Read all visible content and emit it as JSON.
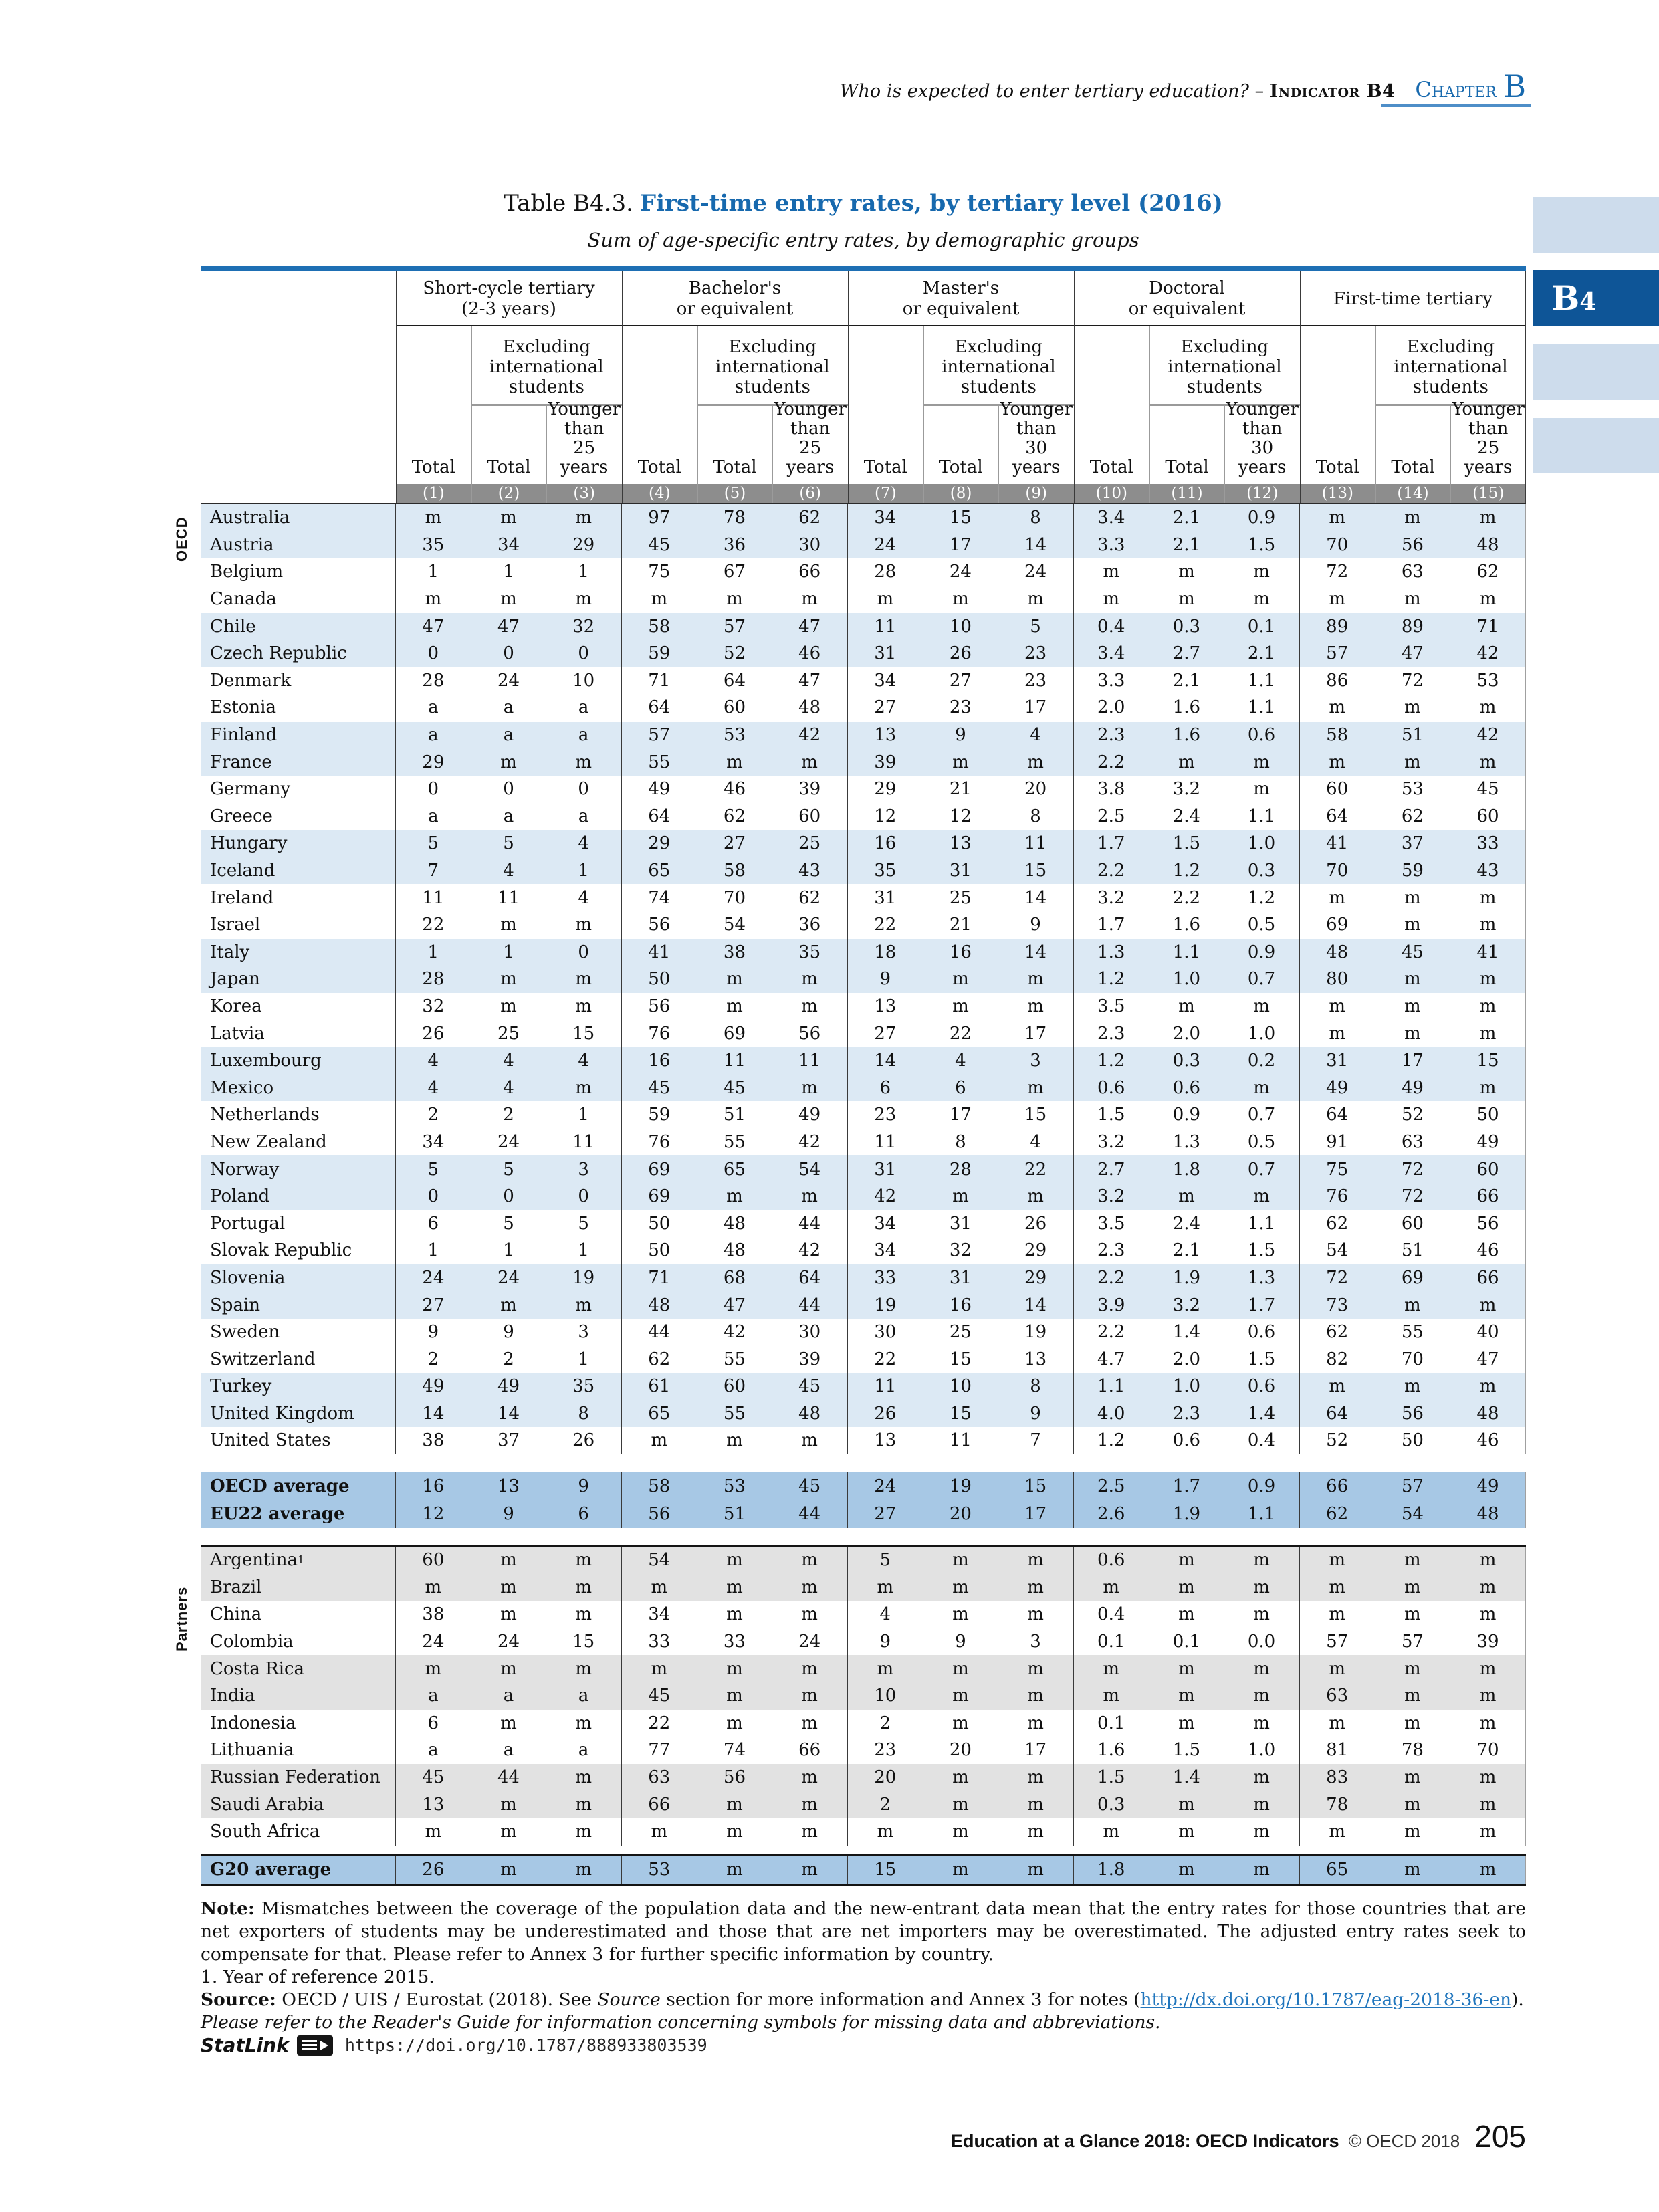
{
  "colors": {
    "accent": "#1769ae",
    "bar-blue": "#1e6fb4",
    "tab-blue": "#0e5597",
    "side-blue": "#cddcec",
    "shade-blue": "#dce9f4",
    "avg-blue": "#a7c8e5",
    "partner-gray": "#e2e2e2",
    "colnum-gray": "#8d8d8d",
    "grid-gray": "#a0a0a0",
    "link-blue": "#2176bd",
    "chapter-rule": "#4e8ec8"
  },
  "running_head": {
    "question": "Who is expected to enter tertiary education?",
    "dash": " – ",
    "indicator": "Indicator B4",
    "chapter_word": "Chapter",
    "chapter_letter": "B"
  },
  "side_tab": {
    "letter": "B",
    "digit": "4"
  },
  "caption": {
    "prefix": "Table B4.3.",
    "title": "First-time entry rates, by tertiary level (2016)",
    "subtitle": "Sum of age-specific entry rates, by demographic groups"
  },
  "table": {
    "groups": [
      {
        "title": "Short-cycle tertiary\n(2-3 years)",
        "age": "25"
      },
      {
        "title": "Bachelor's\nor equivalent",
        "age": "25"
      },
      {
        "title": "Master's\nor equivalent",
        "age": "30"
      },
      {
        "title": "Doctoral\nor equivalent",
        "age": "30"
      },
      {
        "title": "First-time tertiary",
        "age": "25"
      }
    ],
    "subheaders": {
      "total": "Total",
      "excluding": "Excluding\ninternational\nstudents",
      "younger25": "Younger\nthan\n25 years",
      "younger30": "Younger\nthan\n30 years"
    },
    "col_numbers": [
      "(1)",
      "(2)",
      "(3)",
      "(4)",
      "(5)",
      "(6)",
      "(7)",
      "(8)",
      "(9)",
      "(10)",
      "(11)",
      "(12)",
      "(13)",
      "(14)",
      "(15)"
    ],
    "sections": {
      "oecd_label": "OECD",
      "partners_label": "Partners"
    },
    "oecd_rows": [
      {
        "name": "Australia",
        "values": [
          "m",
          "m",
          "m",
          "97",
          "78",
          "62",
          "34",
          "15",
          "8",
          "3.4",
          "2.1",
          "0.9",
          "m",
          "m",
          "m"
        ]
      },
      {
        "name": "Austria",
        "values": [
          "35",
          "34",
          "29",
          "45",
          "36",
          "30",
          "24",
          "17",
          "14",
          "3.3",
          "2.1",
          "1.5",
          "70",
          "56",
          "48"
        ]
      },
      {
        "name": "Belgium",
        "values": [
          "1",
          "1",
          "1",
          "75",
          "67",
          "66",
          "28",
          "24",
          "24",
          "m",
          "m",
          "m",
          "72",
          "63",
          "62"
        ]
      },
      {
        "name": "Canada",
        "values": [
          "m",
          "m",
          "m",
          "m",
          "m",
          "m",
          "m",
          "m",
          "m",
          "m",
          "m",
          "m",
          "m",
          "m",
          "m"
        ]
      },
      {
        "name": "Chile",
        "values": [
          "47",
          "47",
          "32",
          "58",
          "57",
          "47",
          "11",
          "10",
          "5",
          "0.4",
          "0.3",
          "0.1",
          "89",
          "89",
          "71"
        ]
      },
      {
        "name": "Czech Republic",
        "values": [
          "0",
          "0",
          "0",
          "59",
          "52",
          "46",
          "31",
          "26",
          "23",
          "3.4",
          "2.7",
          "2.1",
          "57",
          "47",
          "42"
        ]
      },
      {
        "name": "Denmark",
        "values": [
          "28",
          "24",
          "10",
          "71",
          "64",
          "47",
          "34",
          "27",
          "23",
          "3.3",
          "2.1",
          "1.1",
          "86",
          "72",
          "53"
        ]
      },
      {
        "name": "Estonia",
        "values": [
          "a",
          "a",
          "a",
          "64",
          "60",
          "48",
          "27",
          "23",
          "17",
          "2.0",
          "1.6",
          "1.1",
          "m",
          "m",
          "m"
        ]
      },
      {
        "name": "Finland",
        "values": [
          "a",
          "a",
          "a",
          "57",
          "53",
          "42",
          "13",
          "9",
          "4",
          "2.3",
          "1.6",
          "0.6",
          "58",
          "51",
          "42"
        ]
      },
      {
        "name": "France",
        "values": [
          "29",
          "m",
          "m",
          "55",
          "m",
          "m",
          "39",
          "m",
          "m",
          "2.2",
          "m",
          "m",
          "m",
          "m",
          "m"
        ]
      },
      {
        "name": "Germany",
        "values": [
          "0",
          "0",
          "0",
          "49",
          "46",
          "39",
          "29",
          "21",
          "20",
          "3.8",
          "3.2",
          "m",
          "60",
          "53",
          "45"
        ]
      },
      {
        "name": "Greece",
        "values": [
          "a",
          "a",
          "a",
          "64",
          "62",
          "60",
          "12",
          "12",
          "8",
          "2.5",
          "2.4",
          "1.1",
          "64",
          "62",
          "60"
        ]
      },
      {
        "name": "Hungary",
        "values": [
          "5",
          "5",
          "4",
          "29",
          "27",
          "25",
          "16",
          "13",
          "11",
          "1.7",
          "1.5",
          "1.0",
          "41",
          "37",
          "33"
        ]
      },
      {
        "name": "Iceland",
        "values": [
          "7",
          "4",
          "1",
          "65",
          "58",
          "43",
          "35",
          "31",
          "15",
          "2.2",
          "1.2",
          "0.3",
          "70",
          "59",
          "43"
        ]
      },
      {
        "name": "Ireland",
        "values": [
          "11",
          "11",
          "4",
          "74",
          "70",
          "62",
          "31",
          "25",
          "14",
          "3.2",
          "2.2",
          "1.2",
          "m",
          "m",
          "m"
        ]
      },
      {
        "name": "Israel",
        "values": [
          "22",
          "m",
          "m",
          "56",
          "54",
          "36",
          "22",
          "21",
          "9",
          "1.7",
          "1.6",
          "0.5",
          "69",
          "m",
          "m"
        ]
      },
      {
        "name": "Italy",
        "values": [
          "1",
          "1",
          "0",
          "41",
          "38",
          "35",
          "18",
          "16",
          "14",
          "1.3",
          "1.1",
          "0.9",
          "48",
          "45",
          "41"
        ]
      },
      {
        "name": "Japan",
        "values": [
          "28",
          "m",
          "m",
          "50",
          "m",
          "m",
          "9",
          "m",
          "m",
          "1.2",
          "1.0",
          "0.7",
          "80",
          "m",
          "m"
        ]
      },
      {
        "name": "Korea",
        "values": [
          "32",
          "m",
          "m",
          "56",
          "m",
          "m",
          "13",
          "m",
          "m",
          "3.5",
          "m",
          "m",
          "m",
          "m",
          "m"
        ]
      },
      {
        "name": "Latvia",
        "values": [
          "26",
          "25",
          "15",
          "76",
          "69",
          "56",
          "27",
          "22",
          "17",
          "2.3",
          "2.0",
          "1.0",
          "m",
          "m",
          "m"
        ]
      },
      {
        "name": "Luxembourg",
        "values": [
          "4",
          "4",
          "4",
          "16",
          "11",
          "11",
          "14",
          "4",
          "3",
          "1.2",
          "0.3",
          "0.2",
          "31",
          "17",
          "15"
        ]
      },
      {
        "name": "Mexico",
        "values": [
          "4",
          "4",
          "m",
          "45",
          "45",
          "m",
          "6",
          "6",
          "m",
          "0.6",
          "0.6",
          "m",
          "49",
          "49",
          "m"
        ]
      },
      {
        "name": "Netherlands",
        "values": [
          "2",
          "2",
          "1",
          "59",
          "51",
          "49",
          "23",
          "17",
          "15",
          "1.5",
          "0.9",
          "0.7",
          "64",
          "52",
          "50"
        ]
      },
      {
        "name": "New Zealand",
        "values": [
          "34",
          "24",
          "11",
          "76",
          "55",
          "42",
          "11",
          "8",
          "4",
          "3.2",
          "1.3",
          "0.5",
          "91",
          "63",
          "49"
        ]
      },
      {
        "name": "Norway",
        "values": [
          "5",
          "5",
          "3",
          "69",
          "65",
          "54",
          "31",
          "28",
          "22",
          "2.7",
          "1.8",
          "0.7",
          "75",
          "72",
          "60"
        ]
      },
      {
        "name": "Poland",
        "values": [
          "0",
          "0",
          "0",
          "69",
          "m",
          "m",
          "42",
          "m",
          "m",
          "3.2",
          "m",
          "m",
          "76",
          "72",
          "66"
        ]
      },
      {
        "name": "Portugal",
        "values": [
          "6",
          "5",
          "5",
          "50",
          "48",
          "44",
          "34",
          "31",
          "26",
          "3.5",
          "2.4",
          "1.1",
          "62",
          "60",
          "56"
        ]
      },
      {
        "name": "Slovak Republic",
        "values": [
          "1",
          "1",
          "1",
          "50",
          "48",
          "42",
          "34",
          "32",
          "29",
          "2.3",
          "2.1",
          "1.5",
          "54",
          "51",
          "46"
        ]
      },
      {
        "name": "Slovenia",
        "values": [
          "24",
          "24",
          "19",
          "71",
          "68",
          "64",
          "33",
          "31",
          "29",
          "2.2",
          "1.9",
          "1.3",
          "72",
          "69",
          "66"
        ]
      },
      {
        "name": "Spain",
        "values": [
          "27",
          "m",
          "m",
          "48",
          "47",
          "44",
          "19",
          "16",
          "14",
          "3.9",
          "3.2",
          "1.7",
          "73",
          "m",
          "m"
        ]
      },
      {
        "name": "Sweden",
        "values": [
          "9",
          "9",
          "3",
          "44",
          "42",
          "30",
          "30",
          "25",
          "19",
          "2.2",
          "1.4",
          "0.6",
          "62",
          "55",
          "40"
        ]
      },
      {
        "name": "Switzerland",
        "values": [
          "2",
          "2",
          "1",
          "62",
          "55",
          "39",
          "22",
          "15",
          "13",
          "4.7",
          "2.0",
          "1.5",
          "82",
          "70",
          "47"
        ]
      },
      {
        "name": "Turkey",
        "values": [
          "49",
          "49",
          "35",
          "61",
          "60",
          "45",
          "11",
          "10",
          "8",
          "1.1",
          "1.0",
          "0.6",
          "m",
          "m",
          "m"
        ]
      },
      {
        "name": "United Kingdom",
        "values": [
          "14",
          "14",
          "8",
          "65",
          "55",
          "48",
          "26",
          "15",
          "9",
          "4.0",
          "2.3",
          "1.4",
          "64",
          "56",
          "48"
        ]
      },
      {
        "name": "United States",
        "values": [
          "38",
          "37",
          "26",
          "m",
          "m",
          "m",
          "13",
          "11",
          "7",
          "1.2",
          "0.6",
          "0.4",
          "52",
          "50",
          "46"
        ]
      }
    ],
    "average_rows": [
      {
        "name": "OECD average",
        "values": [
          "16",
          "13",
          "9",
          "58",
          "53",
          "45",
          "24",
          "19",
          "15",
          "2.5",
          "1.7",
          "0.9",
          "66",
          "57",
          "49"
        ]
      },
      {
        "name": "EU22 average",
        "values": [
          "12",
          "9",
          "6",
          "56",
          "51",
          "44",
          "27",
          "20",
          "17",
          "2.6",
          "1.9",
          "1.1",
          "62",
          "54",
          "48"
        ]
      }
    ],
    "partner_rows": [
      {
        "name": "Argentina",
        "sup": "1",
        "values": [
          "60",
          "m",
          "m",
          "54",
          "m",
          "m",
          "5",
          "m",
          "m",
          "0.6",
          "m",
          "m",
          "m",
          "m",
          "m"
        ]
      },
      {
        "name": "Brazil",
        "values": [
          "m",
          "m",
          "m",
          "m",
          "m",
          "m",
          "m",
          "m",
          "m",
          "m",
          "m",
          "m",
          "m",
          "m",
          "m"
        ]
      },
      {
        "name": "China",
        "values": [
          "38",
          "m",
          "m",
          "34",
          "m",
          "m",
          "4",
          "m",
          "m",
          "0.4",
          "m",
          "m",
          "m",
          "m",
          "m"
        ]
      },
      {
        "name": "Colombia",
        "values": [
          "24",
          "24",
          "15",
          "33",
          "33",
          "24",
          "9",
          "9",
          "3",
          "0.1",
          "0.1",
          "0.0",
          "57",
          "57",
          "39"
        ]
      },
      {
        "name": "Costa Rica",
        "values": [
          "m",
          "m",
          "m",
          "m",
          "m",
          "m",
          "m",
          "m",
          "m",
          "m",
          "m",
          "m",
          "m",
          "m",
          "m"
        ]
      },
      {
        "name": "India",
        "values": [
          "a",
          "a",
          "a",
          "45",
          "m",
          "m",
          "10",
          "m",
          "m",
          "m",
          "m",
          "m",
          "63",
          "m",
          "m"
        ]
      },
      {
        "name": "Indonesia",
        "values": [
          "6",
          "m",
          "m",
          "22",
          "m",
          "m",
          "2",
          "m",
          "m",
          "0.1",
          "m",
          "m",
          "m",
          "m",
          "m"
        ]
      },
      {
        "name": "Lithuania",
        "values": [
          "a",
          "a",
          "a",
          "77",
          "74",
          "66",
          "23",
          "20",
          "17",
          "1.6",
          "1.5",
          "1.0",
          "81",
          "78",
          "70"
        ]
      },
      {
        "name": "Russian Federation",
        "values": [
          "45",
          "44",
          "m",
          "63",
          "56",
          "m",
          "20",
          "m",
          "m",
          "1.5",
          "1.4",
          "m",
          "83",
          "m",
          "m"
        ]
      },
      {
        "name": "Saudi Arabia",
        "values": [
          "13",
          "m",
          "m",
          "66",
          "m",
          "m",
          "2",
          "m",
          "m",
          "0.3",
          "m",
          "m",
          "78",
          "m",
          "m"
        ]
      },
      {
        "name": "South Africa",
        "values": [
          "m",
          "m",
          "m",
          "m",
          "m",
          "m",
          "m",
          "m",
          "m",
          "m",
          "m",
          "m",
          "m",
          "m",
          "m"
        ]
      }
    ],
    "g20_row": [
      {
        "name": "G20 average",
        "values": [
          "26",
          "m",
          "m",
          "53",
          "m",
          "m",
          "15",
          "m",
          "m",
          "1.8",
          "m",
          "m",
          "65",
          "m",
          "m"
        ]
      }
    ]
  },
  "notes": {
    "note_label": "Note:",
    "note_text": " Mismatches between the coverage of the population data and the new-entrant data mean that the entry rates for those countries that are net exporters of students may be underestimated and those that are net importers may be overestimated. The adjusted entry rates seek to compensate for that. Please refer to Annex 3 for further specific information by country.",
    "footnote1": "1. Year of reference 2015.",
    "source_label": "Source:",
    "source_pre": " OECD / UIS / Eurostat (2018). See ",
    "source_word": "Source",
    "source_mid": " section for more information and Annex 3 for notes (",
    "source_link": "http://dx.doi.org/10.1787/eag-2018-36-en",
    "source_end": ").",
    "readers_guide": "Please refer to the Reader's Guide for information concerning symbols for missing data and abbreviations.",
    "statlink_label": "StatLink",
    "statlink_url": "https://doi.org/10.1787/888933803539"
  },
  "footer": {
    "book": "Education at a Glance 2018: OECD Indicators",
    "copyright": "© OECD 2018",
    "page": "205"
  }
}
